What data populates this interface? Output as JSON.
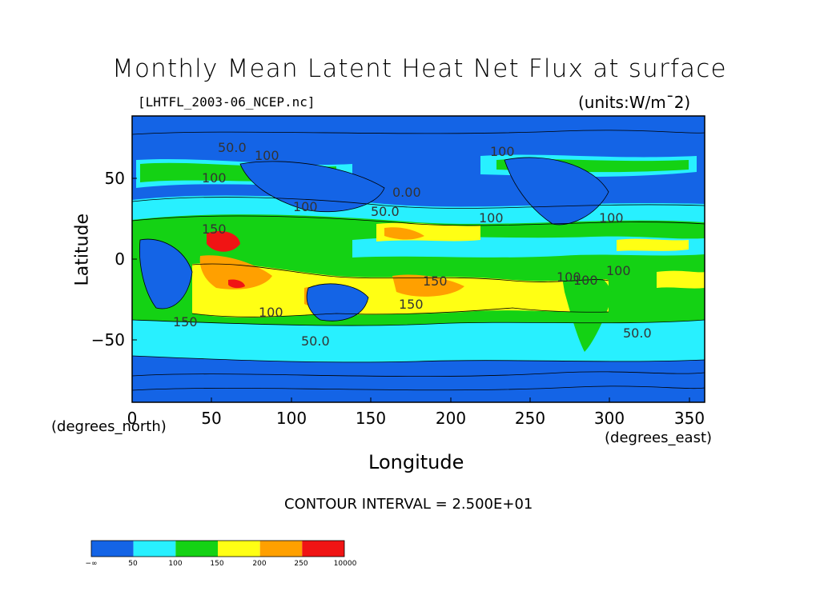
{
  "chart_data": {
    "type": "heatmap",
    "title": "Monthly Mean Latent Heat Net Flux at surface",
    "subtitle_left": "[LHTFL_2003-06_NCEP.nc]",
    "subtitle_right": "(units:W/m¯2)",
    "xlabel": "Longitude",
    "ylabel": "Latitude",
    "x_units_label": "(degrees_east)",
    "y_units_label": "(degrees_north)",
    "xlim": [
      0,
      360
    ],
    "ylim": [
      -90,
      90
    ],
    "x_ticks": [
      "0",
      "50",
      "100",
      "150",
      "200",
      "250",
      "300",
      "350"
    ],
    "y_ticks": [
      "50",
      "0",
      "−50"
    ],
    "contour_interval": "CONTOUR INTERVAL = 2.500E+01",
    "contour_labels": [
      "50.0",
      "100",
      "100",
      "100",
      "0.00",
      "50.0",
      "100",
      "100",
      "150",
      "150",
      "150",
      "100",
      "100",
      "100",
      "150",
      "50.0",
      "100",
      "50.0",
      "100"
    ],
    "colorbar": {
      "tick_labels": [
        "−∞",
        "50",
        "100",
        "150",
        "200",
        "250",
        "10000"
      ],
      "colors": [
        "#1464e6",
        "#28f0ff",
        "#14d214",
        "#ffff14",
        "#ffa000",
        "#f01414"
      ]
    }
  }
}
